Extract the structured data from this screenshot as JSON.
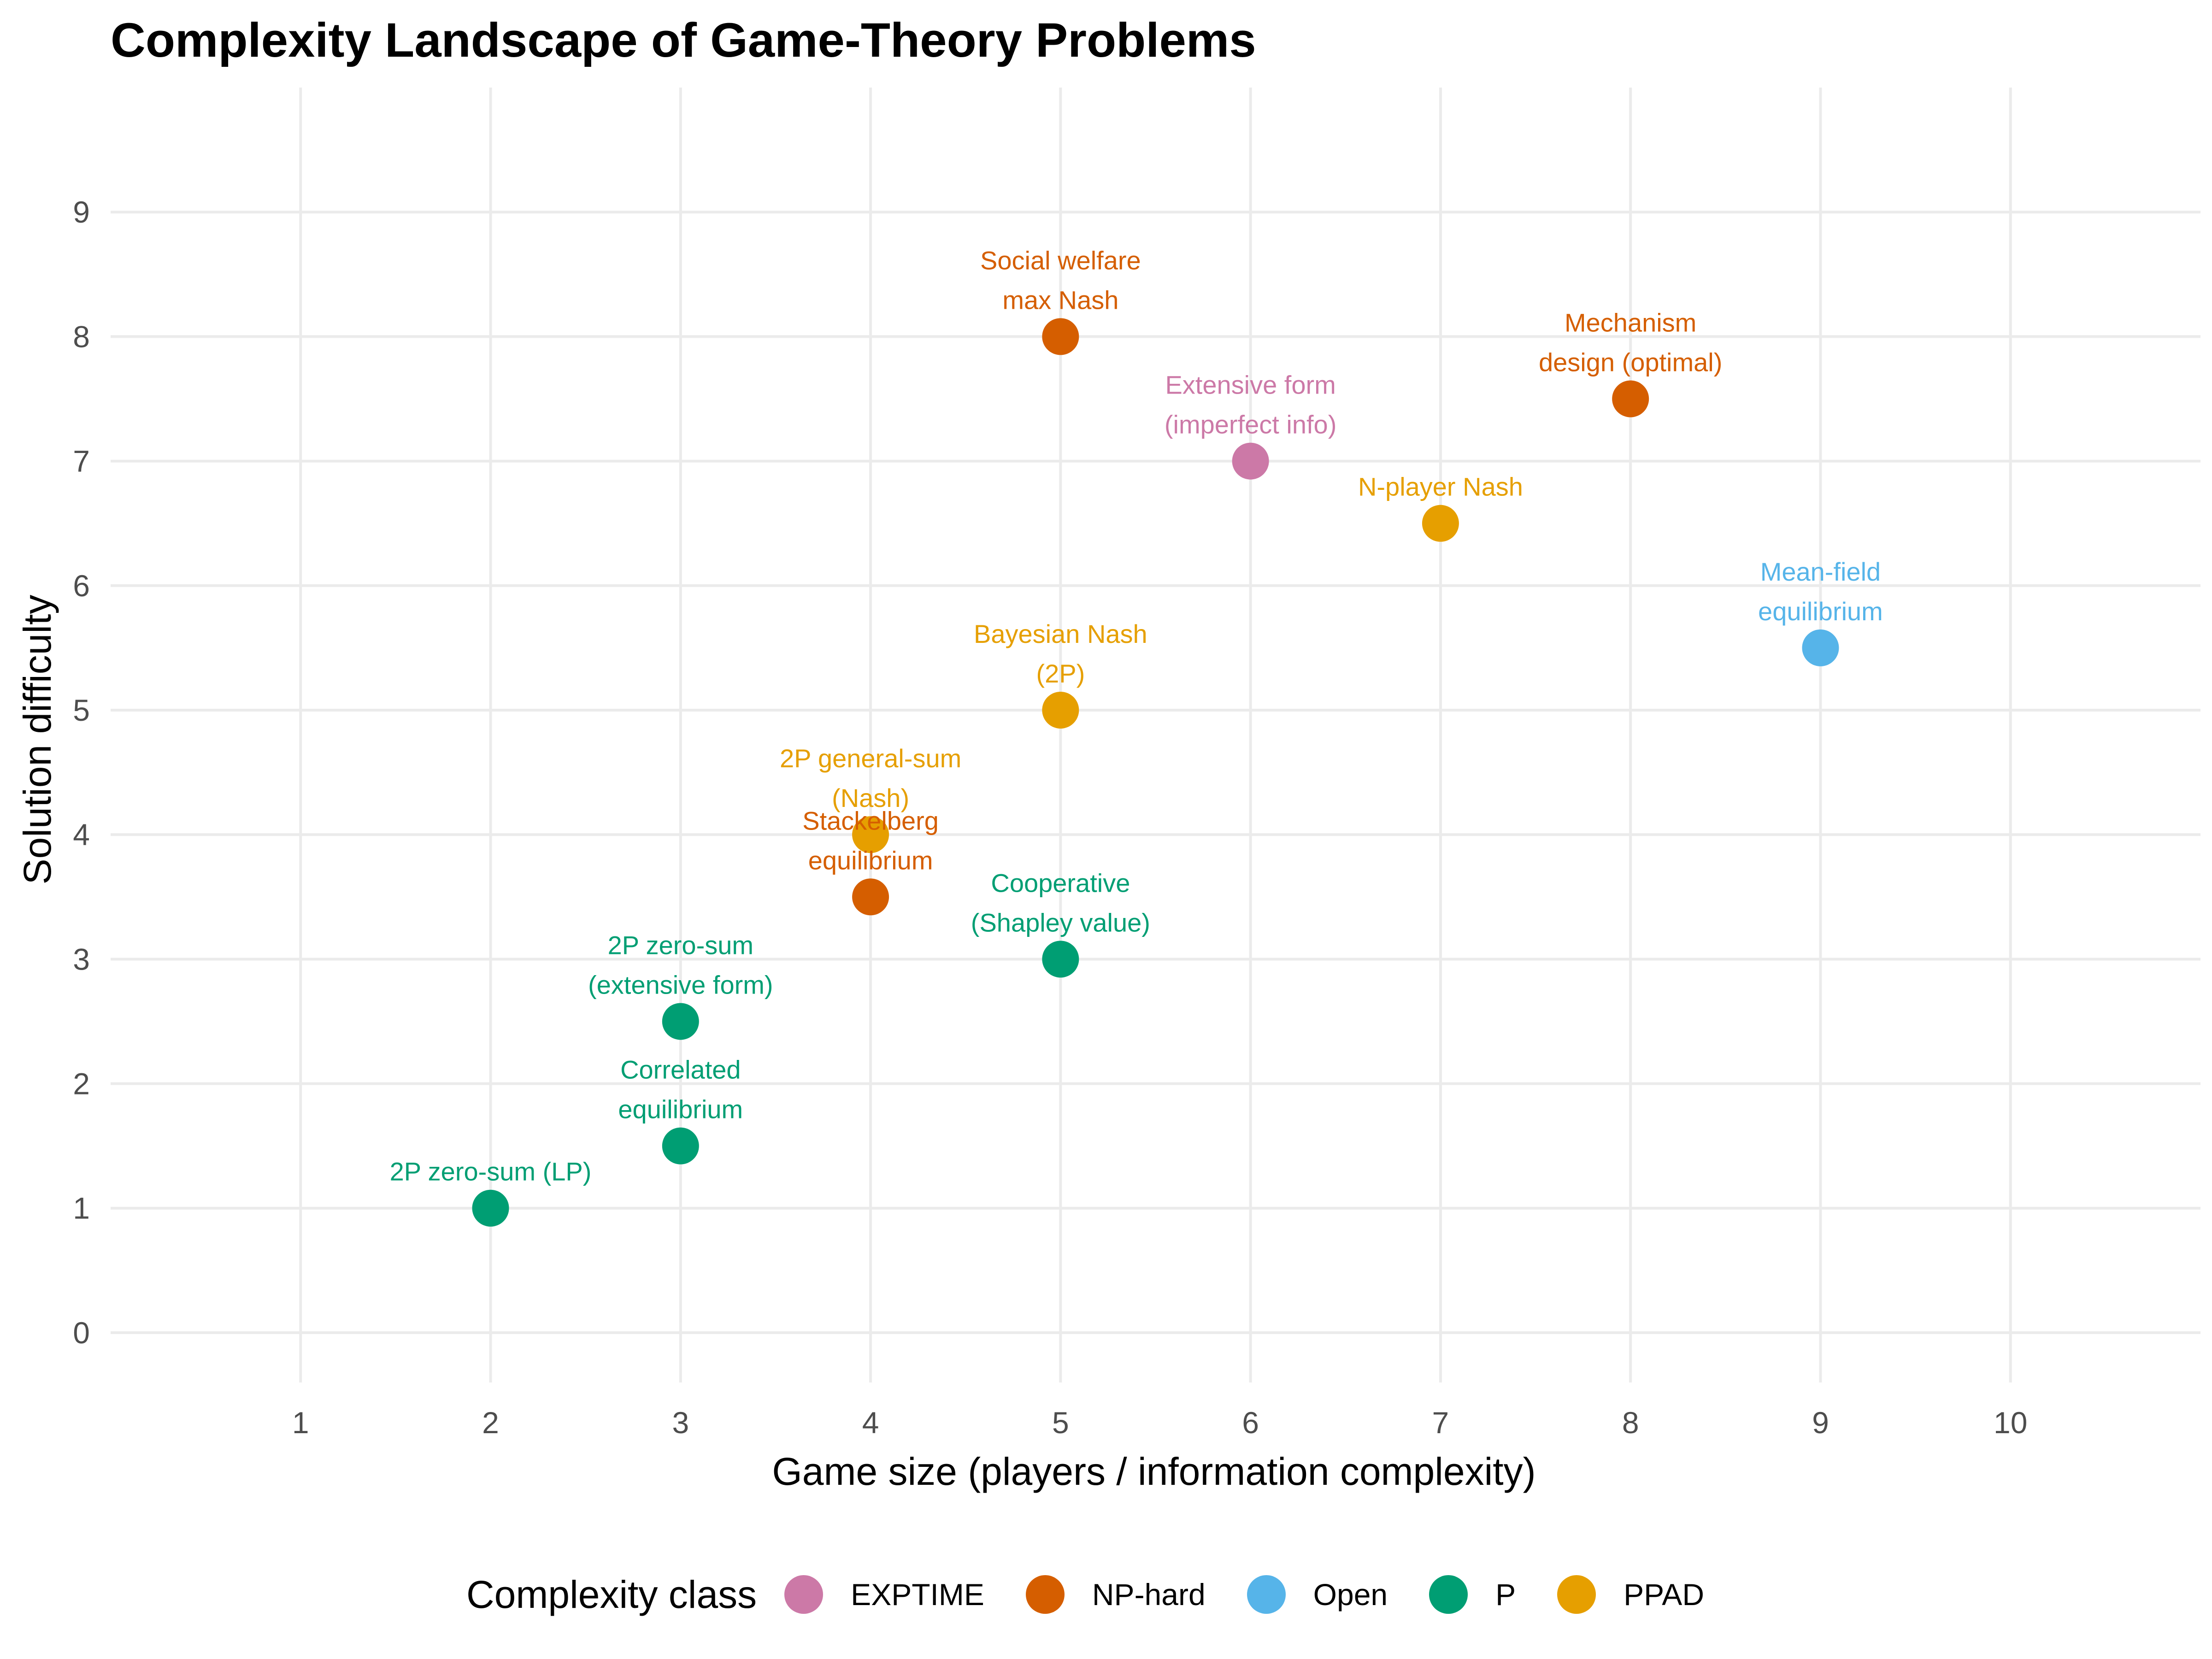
{
  "chart_data": {
    "type": "scatter",
    "title": "Complexity Landscape of Game-Theory Problems",
    "xlabel": "Game size (players / information complexity)",
    "ylabel": "Solution difficulty",
    "xlim": [
      0,
      11
    ],
    "ylim": [
      -0.4,
      10
    ],
    "x_ticks": [
      1,
      2,
      3,
      4,
      5,
      6,
      7,
      8,
      9,
      10
    ],
    "y_ticks": [
      0,
      1,
      2,
      3,
      4,
      5,
      6,
      7,
      8,
      9
    ],
    "grid": true,
    "legend": {
      "title": "Complexity class",
      "placement": "bottom",
      "entries": [
        {
          "name": "EXPTIME",
          "color": "#CC79A7"
        },
        {
          "name": "NP-hard",
          "color": "#D55E00"
        },
        {
          "name": "Open",
          "color": "#56B4E9"
        },
        {
          "name": "P",
          "color": "#009E73"
        },
        {
          "name": "PPAD",
          "color": "#E69F00"
        }
      ]
    },
    "points": [
      {
        "label": [
          "2P zero-sum (LP)"
        ],
        "x": 2,
        "y": 1,
        "class": "P"
      },
      {
        "label": [
          "Correlated",
          "equilibrium"
        ],
        "x": 3,
        "y": 1.5,
        "class": "P"
      },
      {
        "label": [
          "2P zero-sum",
          "(extensive form)"
        ],
        "x": 3,
        "y": 2.5,
        "class": "P"
      },
      {
        "label": [
          "Cooperative",
          "(Shapley value)"
        ],
        "x": 5,
        "y": 3,
        "class": "P"
      },
      {
        "label": [
          "Stackelberg",
          "equilibrium"
        ],
        "x": 4,
        "y": 3.5,
        "class": "NP-hard"
      },
      {
        "label": [
          "2P general-sum",
          "(Nash)"
        ],
        "x": 4,
        "y": 4,
        "class": "PPAD"
      },
      {
        "label": [
          "Bayesian Nash",
          "(2P)"
        ],
        "x": 5,
        "y": 5,
        "class": "PPAD"
      },
      {
        "label": [
          "Mean-field",
          "equilibrium"
        ],
        "x": 9,
        "y": 5.5,
        "class": "Open"
      },
      {
        "label": [
          "N-player Nash"
        ],
        "x": 7,
        "y": 6.5,
        "class": "PPAD"
      },
      {
        "label": [
          "Extensive form",
          "(imperfect info)"
        ],
        "x": 6,
        "y": 7,
        "class": "EXPTIME"
      },
      {
        "label": [
          "Mechanism",
          "design (optimal)"
        ],
        "x": 8,
        "y": 7.5,
        "class": "NP-hard"
      },
      {
        "label": [
          "Social welfare",
          "max Nash"
        ],
        "x": 5,
        "y": 8,
        "class": "NP-hard"
      }
    ]
  }
}
